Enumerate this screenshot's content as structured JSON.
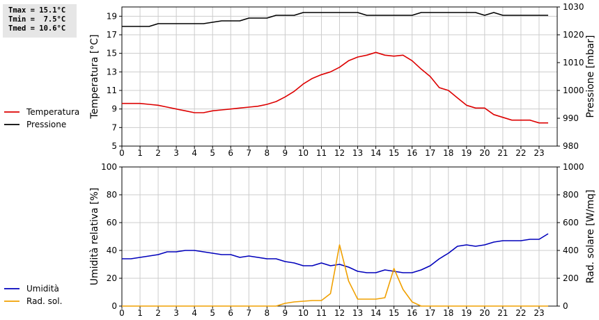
{
  "stats": {
    "tmax": "Tmax = 15.1°C",
    "tmin": "Tmin =  7.5°C",
    "tmed": "Tmed = 10.6°C"
  },
  "colors": {
    "temperature": "#dd0000",
    "pressure": "#000000",
    "humidity": "#0000bb",
    "radiation": "#f0a000",
    "grid": "#cccccc"
  },
  "chart_data": [
    {
      "type": "line",
      "x_ticks": [
        "0",
        "1",
        "2",
        "3",
        "4",
        "5",
        "6",
        "7",
        "8",
        "9",
        "10",
        "11",
        "12",
        "13",
        "14",
        "15",
        "16",
        "17",
        "18",
        "19",
        "20",
        "21",
        "22",
        "23"
      ],
      "ylabel": "Temperatura [°C]",
      "y2label": "Pressione [mbar]",
      "ylim": [
        5,
        20
      ],
      "y_ticks": [
        "5",
        "7",
        "9",
        "11",
        "13",
        "15",
        "17",
        "19"
      ],
      "y2lim": [
        980,
        1030
      ],
      "y2_ticks": [
        "980",
        "990",
        "1000",
        "1010",
        "1020",
        "1030"
      ],
      "grid": true,
      "legend": [
        "Temperatura",
        "Pressione"
      ],
      "series": [
        {
          "name": "Temperatura",
          "axis": "left",
          "x": [
            0,
            1,
            1.5,
            2,
            2.5,
            3,
            3.5,
            4,
            4.5,
            5,
            5.5,
            6,
            6.5,
            7,
            7.5,
            8,
            8.5,
            9,
            9.5,
            10,
            10.5,
            11,
            11.5,
            12,
            12.5,
            13,
            13.5,
            14,
            14.5,
            15,
            15.5,
            16,
            16.5,
            17,
            17.5,
            18,
            18.5,
            19,
            19.5,
            20,
            20.5,
            21,
            21.5,
            22,
            22.5,
            23,
            23.5
          ],
          "values": [
            9.6,
            9.6,
            9.5,
            9.4,
            9.2,
            9.0,
            8.8,
            8.6,
            8.6,
            8.8,
            8.9,
            9.0,
            9.1,
            9.2,
            9.3,
            9.5,
            9.8,
            10.3,
            10.9,
            11.7,
            12.3,
            12.7,
            13.0,
            13.5,
            14.2,
            14.6,
            14.8,
            15.1,
            14.8,
            14.7,
            14.8,
            14.2,
            13.3,
            12.5,
            11.3,
            11.0,
            10.2,
            9.4,
            9.1,
            9.1,
            8.4,
            8.1,
            7.8,
            7.8,
            7.8,
            7.5,
            7.5
          ]
        },
        {
          "name": "Pressione",
          "axis": "right",
          "x": [
            0,
            1.5,
            2,
            4.5,
            5.5,
            6.5,
            7,
            8,
            8.5,
            9.5,
            10,
            13,
            13.5,
            16,
            16.5,
            19.5,
            20,
            20.5,
            21,
            23.5
          ],
          "values": [
            1023,
            1023,
            1024,
            1024,
            1025,
            1025,
            1026,
            1026,
            1027,
            1027,
            1028,
            1028,
            1027,
            1027,
            1028,
            1028,
            1027,
            1028,
            1027,
            1027
          ]
        }
      ]
    },
    {
      "type": "line",
      "x_ticks": [
        "0",
        "1",
        "2",
        "3",
        "4",
        "5",
        "6",
        "7",
        "8",
        "9",
        "10",
        "11",
        "12",
        "13",
        "14",
        "15",
        "16",
        "17",
        "18",
        "19",
        "20",
        "21",
        "22",
        "23"
      ],
      "ylabel": "Umidità relativa [%]",
      "y2label": "Rad. solare [W/mq]",
      "ylim": [
        0,
        100
      ],
      "y_ticks": [
        "0",
        "20",
        "40",
        "60",
        "80",
        "100"
      ],
      "y2lim": [
        0,
        1000
      ],
      "y2_ticks": [
        "0",
        "200",
        "400",
        "600",
        "800",
        "1000"
      ],
      "grid": true,
      "legend": [
        "Umidità",
        "Rad. sol."
      ],
      "series": [
        {
          "name": "Umidità",
          "axis": "left",
          "x": [
            0,
            0.5,
            1,
            1.5,
            2,
            2.5,
            3,
            3.5,
            4,
            4.5,
            5,
            5.5,
            6,
            6.5,
            7,
            7.5,
            8,
            8.5,
            9,
            9.5,
            10,
            10.5,
            11,
            11.5,
            12,
            12.5,
            13,
            13.5,
            14,
            14.5,
            15,
            15.5,
            16,
            16.5,
            17,
            17.5,
            18,
            18.5,
            19,
            19.5,
            20,
            20.5,
            21,
            21.5,
            22,
            22.5,
            23,
            23.5
          ],
          "values": [
            34,
            34,
            35,
            36,
            37,
            39,
            39,
            40,
            40,
            39,
            38,
            37,
            37,
            35,
            36,
            35,
            34,
            34,
            32,
            31,
            29,
            29,
            31,
            29,
            30,
            28,
            25,
            24,
            24,
            26,
            25,
            24,
            24,
            26,
            29,
            34,
            38,
            43,
            44,
            43,
            44,
            46,
            47,
            47,
            47,
            48,
            48,
            52
          ]
        },
        {
          "name": "Rad. sol.",
          "axis": "right",
          "x": [
            0,
            8,
            8.5,
            9,
            9.5,
            10,
            10.5,
            11,
            11.5,
            12,
            12.5,
            13,
            13.5,
            14,
            14.5,
            15,
            15.5,
            16,
            16.5,
            17,
            23.5
          ],
          "values": [
            0,
            0,
            0,
            20,
            30,
            35,
            40,
            40,
            90,
            440,
            180,
            50,
            50,
            50,
            60,
            270,
            120,
            30,
            0,
            0,
            0
          ]
        }
      ]
    }
  ]
}
